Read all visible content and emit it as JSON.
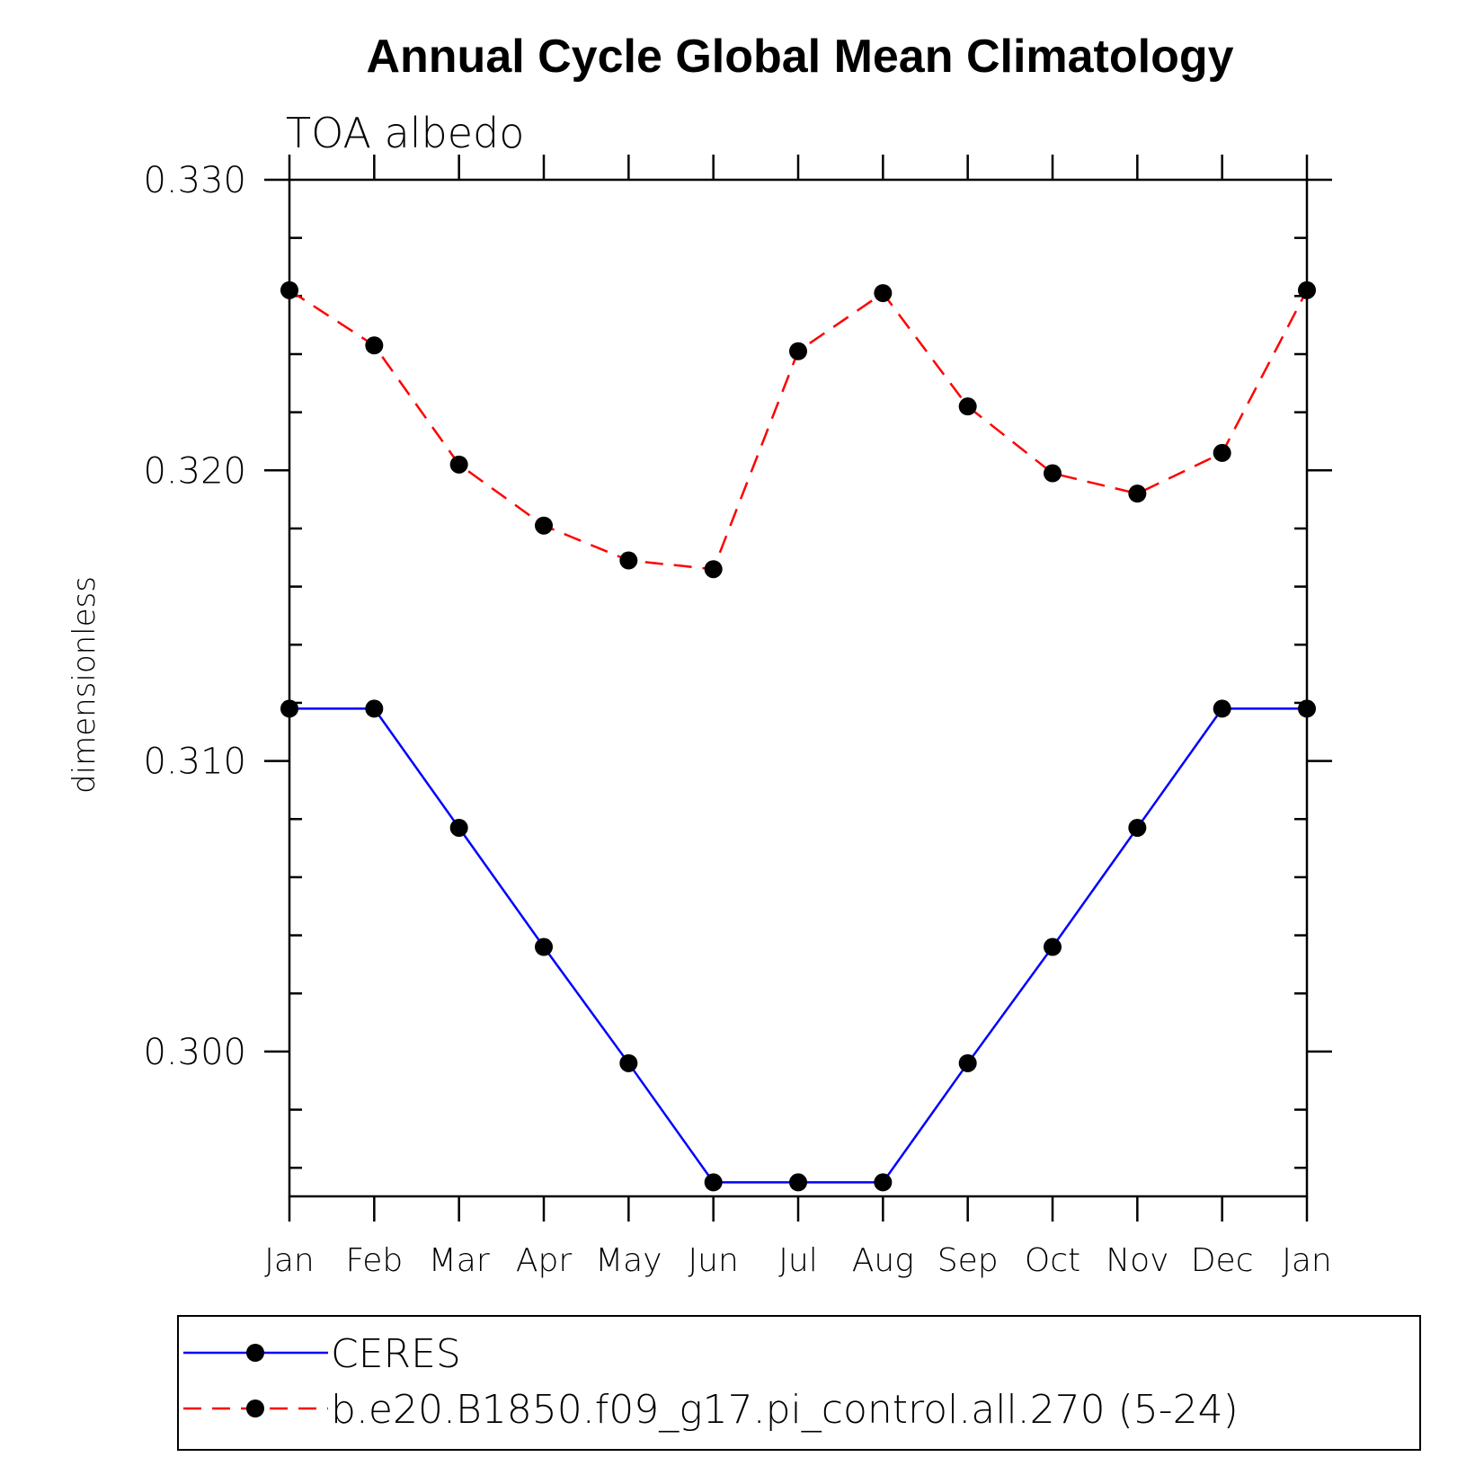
{
  "chart_data": {
    "type": "line",
    "title": "Annual Cycle Global Mean Climatology",
    "subtitle": "TOA albedo",
    "ylabel": "dimensionless",
    "xlabel": "",
    "categories": [
      "Jan",
      "Feb",
      "Mar",
      "Apr",
      "May",
      "Jun",
      "Jul",
      "Aug",
      "Sep",
      "Oct",
      "Nov",
      "Dec",
      "Jan"
    ],
    "ylim": [
      0.295,
      0.33
    ],
    "yticks": [
      0.3,
      0.31,
      0.32,
      0.33
    ],
    "ytick_labels": [
      "0.300",
      "0.310",
      "0.320",
      "0.330"
    ],
    "grid": false,
    "legend_position": "bottom",
    "series": [
      {
        "name": "CERES",
        "color": "#0000ff",
        "line_style": "solid",
        "marker": "filled-circle",
        "values": [
          0.3118,
          0.3118,
          0.3077,
          0.3036,
          0.2996,
          0.2955,
          0.2955,
          0.2955,
          0.2996,
          0.3036,
          0.3077,
          0.3118,
          0.3118
        ]
      },
      {
        "name": "b.e20.B1850.f09_g17.pi_control.all.270 (5-24)",
        "color": "#ff0000",
        "line_style": "dashed",
        "marker": "filled-circle",
        "values": [
          0.3262,
          0.3243,
          0.3202,
          0.3181,
          0.3169,
          0.3166,
          0.3241,
          0.3261,
          0.3222,
          0.3199,
          0.3192,
          0.3206,
          0.3262
        ]
      }
    ]
  }
}
